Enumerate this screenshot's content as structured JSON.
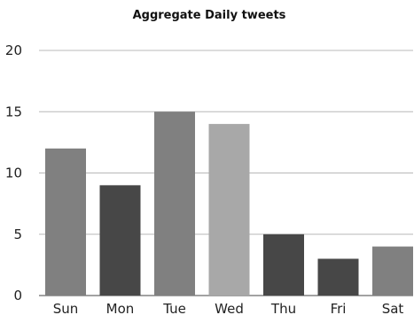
{
  "chart_data": {
    "type": "bar",
    "title": "Aggregate Daily tweets",
    "xlabel": "",
    "ylabel": "",
    "categories": [
      "Sun",
      "Mon",
      "Tue",
      "Wed",
      "Thu",
      "Fri",
      "Sat"
    ],
    "values": [
      12,
      9,
      15,
      14,
      5,
      3,
      4
    ],
    "bar_colors": [
      "#808080",
      "#474747",
      "#808080",
      "#a8a8a8",
      "#474747",
      "#474747",
      "#808080"
    ],
    "ylim": [
      0,
      20
    ],
    "yticks": [
      "0",
      "5",
      "10",
      "15",
      "20"
    ],
    "grid": true,
    "legend": "none"
  }
}
